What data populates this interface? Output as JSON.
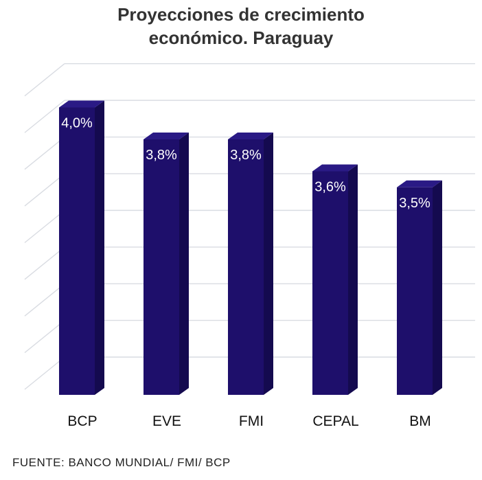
{
  "chart_data": {
    "type": "bar",
    "title_lines": [
      "Proyecciones de crecimiento",
      "económico. Paraguay"
    ],
    "categories": [
      "BCP",
      "EVE",
      "FMI",
      "CEPAL",
      "BM"
    ],
    "values": [
      4.0,
      3.8,
      3.8,
      3.6,
      3.5
    ],
    "data_labels": [
      "4,0%",
      "3,8%",
      "3,8%",
      "3,6%",
      "3,5%"
    ],
    "ylim": [
      2.2,
      4.2
    ],
    "grid": true,
    "style": "3d",
    "colors": {
      "bar_front": "#1e0f6b",
      "bar_side": "#140a4f",
      "bar_top": "#2a1a85",
      "grid": "#d9dce2",
      "label": "#ffffff"
    }
  },
  "source": "FUENTE: BANCO MUNDIAL/ FMI/ BCP"
}
